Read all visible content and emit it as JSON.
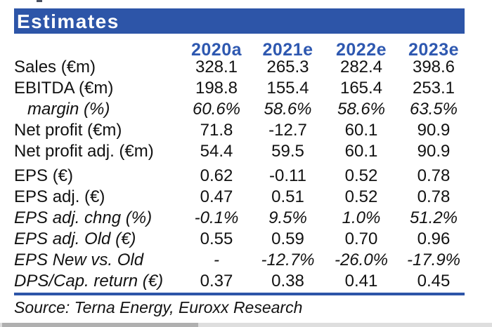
{
  "banner": {
    "title": "Estimates"
  },
  "table": {
    "columns": [
      "2020a",
      "2021e",
      "2022e",
      "2023e"
    ],
    "rows": [
      {
        "label": "Sales (€m)",
        "values": [
          "328.1",
          "265.3",
          "282.4",
          "398.6"
        ],
        "label_italic": false,
        "values_italic": false,
        "indent": false
      },
      {
        "label": "EBITDA (€m)",
        "values": [
          "198.8",
          "155.4",
          "165.4",
          "253.1"
        ],
        "label_italic": false,
        "values_italic": false,
        "indent": false
      },
      {
        "label": "margin (%)",
        "values": [
          "60.6%",
          "58.6%",
          "58.6%",
          "63.5%"
        ],
        "label_italic": true,
        "values_italic": true,
        "indent": true
      },
      {
        "label": "Net profit (€m)",
        "values": [
          "71.8",
          "-12.7",
          "60.1",
          "90.9"
        ],
        "label_italic": false,
        "values_italic": false,
        "indent": false
      },
      {
        "label": "Net profit adj. (€m)",
        "values": [
          "54.4",
          "59.5",
          "60.1",
          "90.9"
        ],
        "label_italic": false,
        "values_italic": false,
        "indent": false
      },
      {
        "label": "EPS (€)",
        "values": [
          "0.62",
          "-0.11",
          "0.52",
          "0.78"
        ],
        "label_italic": false,
        "values_italic": false,
        "indent": false
      },
      {
        "label": "EPS adj. (€)",
        "values": [
          "0.47",
          "0.51",
          "0.52",
          "0.78"
        ],
        "label_italic": false,
        "values_italic": false,
        "indent": false
      },
      {
        "label": "EPS adj. chng (%)",
        "values": [
          "-0.1%",
          "9.5%",
          "1.0%",
          "51.2%"
        ],
        "label_italic": true,
        "values_italic": true,
        "indent": false
      },
      {
        "label": "EPS adj. Old (€)",
        "values": [
          "0.55",
          "0.59",
          "0.70",
          "0.96"
        ],
        "label_italic": true,
        "values_italic": false,
        "indent": false
      },
      {
        "label": "EPS New vs. Old",
        "values": [
          "-",
          "-12.7%",
          "-26.0%",
          "-17.9%"
        ],
        "label_italic": true,
        "values_italic": true,
        "indent": false
      },
      {
        "label": "DPS/Cap. return (€)",
        "values": [
          "0.37",
          "0.38",
          "0.41",
          "0.45"
        ],
        "label_italic": true,
        "values_italic": false,
        "indent": false
      }
    ]
  },
  "footer": {
    "source": "Source: Terna Energy, Euroxx Research"
  },
  "colors": {
    "banner_blue": "#2D55A8",
    "year_blue": "#2E58B0",
    "rule_blue": "#2D55A8",
    "text": "#121212",
    "scrollbar_thumb": "#B0B0B0",
    "scrollbar_track": "#DEDEDE"
  }
}
